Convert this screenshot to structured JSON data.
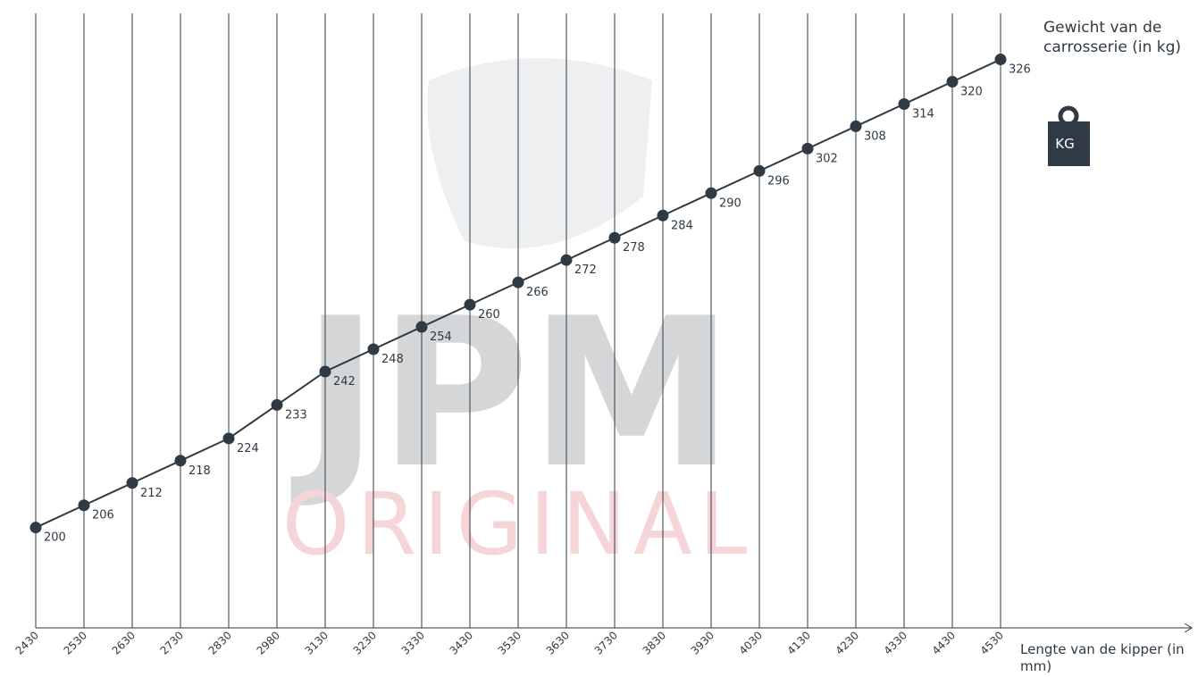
{
  "chart_data": {
    "type": "line",
    "categories": [
      "2430",
      "2530",
      "2630",
      "2730",
      "2830",
      "2980",
      "3130",
      "3230",
      "3330",
      "3430",
      "3530",
      "3630",
      "3730",
      "3830",
      "3930",
      "4030",
      "4130",
      "4230",
      "4330",
      "4430",
      "4530"
    ],
    "series": [
      {
        "color": "#2f3a44",
        "values": [
          200,
          206,
          212,
          218,
          224,
          233,
          242,
          248,
          254,
          260,
          266,
          272,
          278,
          284,
          290,
          296,
          302,
          308,
          314,
          320,
          326
        ]
      }
    ],
    "ylim": [
      173,
      342
    ],
    "y_label": "Gewicht van de carrosserie (in kg)",
    "x_label": "Lengte van de kipper (in mm)",
    "icon_label": "KG",
    "watermark": [
      "JPM",
      "ORIGINAL"
    ],
    "grid": true
  }
}
